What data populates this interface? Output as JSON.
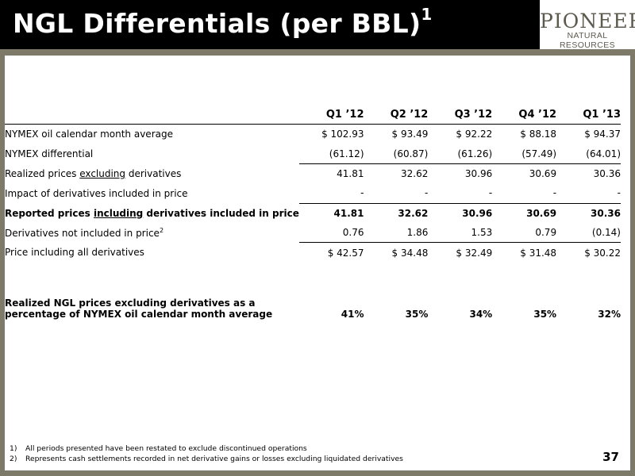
{
  "slide": {
    "title": "NGL Differentials (per BBL)",
    "title_footnote": "1",
    "logo_top": "PIONEER",
    "logo_bottom": "NATURAL RESOURCES",
    "page_number": "37"
  },
  "table": {
    "columns": [
      "Q1 ’12",
      "Q2 ’12",
      "Q3 ’12",
      "Q4 ’12",
      "Q1 ’13"
    ],
    "rows": [
      {
        "label": "NYMEX oil calendar month average",
        "values": [
          "$ 102.93",
          "$ 93.49",
          "$ 92.22",
          "$ 88.18",
          "$ 94.37"
        ]
      },
      {
        "label": "NYMEX differential",
        "values": [
          "(61.12)",
          "(60.87)",
          "(61.26)",
          "(57.49)",
          "(64.01)"
        ]
      },
      {
        "label_pre": "Realized prices ",
        "label_u": "excluding",
        "label_post": " derivatives",
        "values": [
          "41.81",
          "32.62",
          "30.96",
          "30.69",
          "30.36"
        ]
      },
      {
        "label": "Impact of derivatives included in price",
        "values": [
          "-",
          "-",
          "-",
          "-",
          "-"
        ]
      },
      {
        "label_pre": "Reported prices ",
        "label_u": "including",
        "label_post": " derivatives included in price",
        "values": [
          "41.81",
          "32.62",
          "30.96",
          "30.69",
          "30.36"
        ]
      },
      {
        "label": "Derivatives not included in price",
        "label_sup": "2",
        "values": [
          "0.76",
          "1.86",
          "1.53",
          "0.79",
          "(0.14)"
        ]
      },
      {
        "label": "Price including all derivatives",
        "values": [
          "$ 42.57",
          "$ 34.48",
          "$ 32.49",
          "$ 31.48",
          "$ 30.22"
        ]
      }
    ],
    "percentage_row": {
      "label_line1": "Realized NGL prices excluding derivatives as a",
      "label_line2": "percentage of NYMEX oil calendar month average",
      "values": [
        "41%",
        "35%",
        "34%",
        "35%",
        "32%"
      ]
    }
  },
  "footnotes": [
    {
      "num": "1)",
      "text": "All periods presented have been restated to exclude discontinued operations"
    },
    {
      "num": "2)",
      "text": "Represents cash settlements recorded in net derivative gains or losses excluding liquidated derivatives"
    }
  ]
}
